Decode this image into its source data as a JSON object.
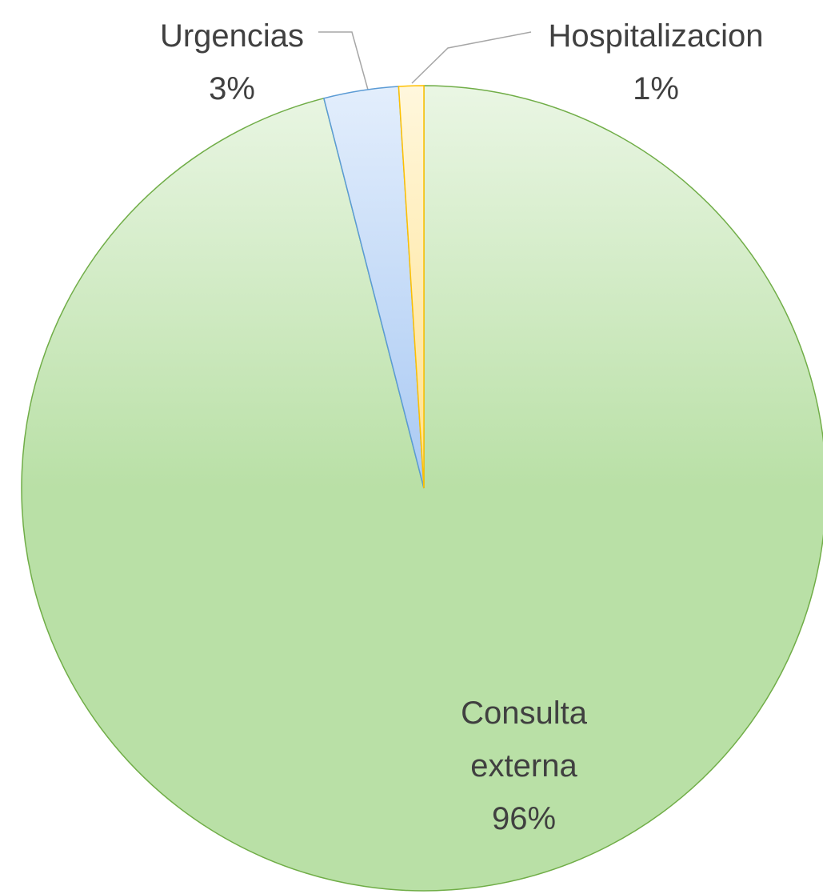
{
  "chart_data": {
    "type": "pie",
    "categories": [
      "Consulta externa",
      "Urgencias",
      "Hospitalizacion"
    ],
    "values": [
      96,
      3,
      1
    ],
    "value_labels": [
      "96%",
      "3%",
      "1%"
    ],
    "colors": [
      [
        "#eaf6e4",
        "#b9e0a6",
        "#70ad47"
      ],
      [
        "#e3eefc",
        "#a9c9f3",
        "#5b9bd5"
      ],
      [
        "#fff7dd",
        "#ffe08a",
        "#ffc000"
      ]
    ]
  }
}
